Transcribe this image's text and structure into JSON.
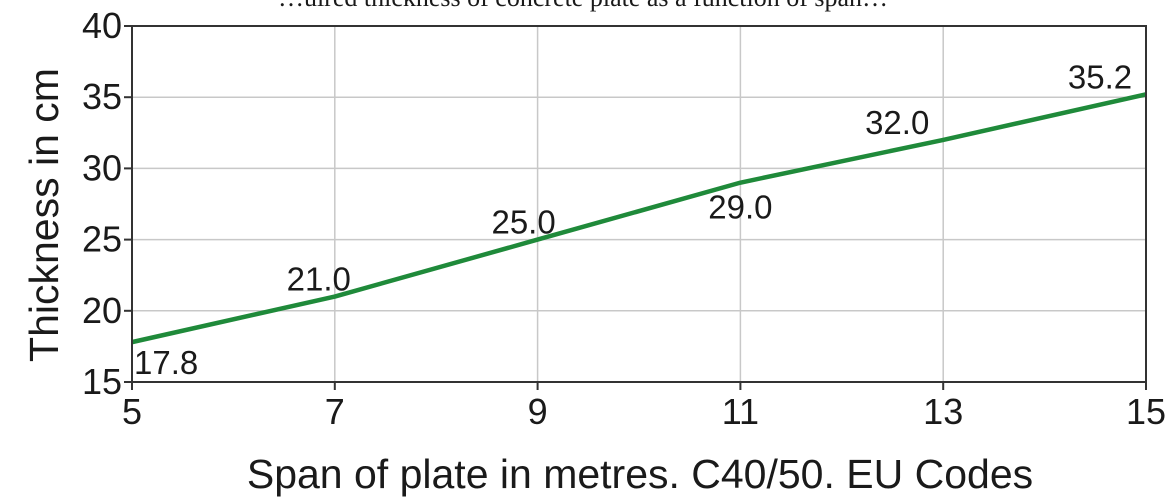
{
  "chart_data": {
    "type": "line",
    "clipped_header": "…uired thickness of concrete plate as a function of span…",
    "xlabel": "Span of plate in metres. C40/50. EU Codes",
    "ylabel": "Thickness in cm",
    "xlim": [
      5,
      15
    ],
    "ylim": [
      15,
      40
    ],
    "x_ticks": [
      "5",
      "7",
      "9",
      "11",
      "13",
      "15"
    ],
    "y_ticks": [
      "15",
      "20",
      "25",
      "30",
      "35",
      "40"
    ],
    "grid": true,
    "series": [
      {
        "color": "#1f8a3a",
        "x": [
          5,
          7,
          9,
          11,
          13,
          15
        ],
        "y": [
          17.8,
          21.0,
          25.0,
          29.0,
          32.0,
          35.2
        ],
        "labels": [
          "17.8",
          "21.0",
          "25.0",
          "29.0",
          "32.0",
          "35.2"
        ]
      }
    ]
  }
}
